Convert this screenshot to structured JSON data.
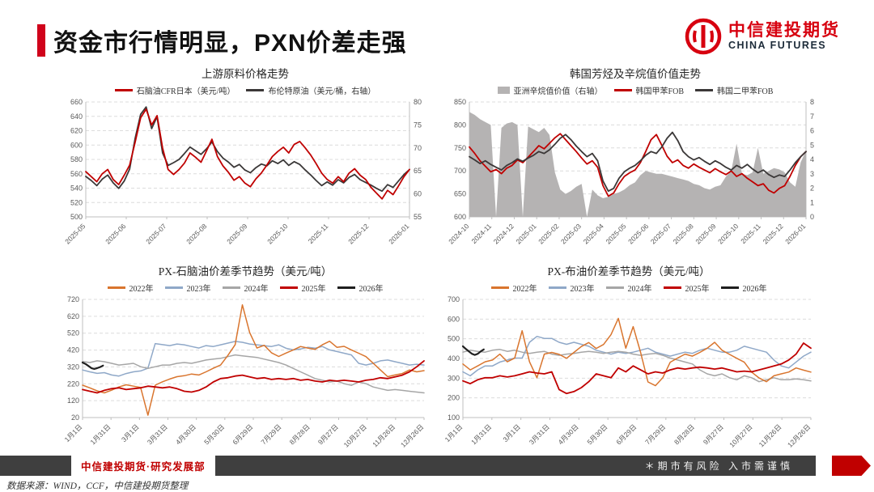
{
  "header": {
    "title": "资金市行情明显，PXN价差走强"
  },
  "logo": {
    "cn": "中信建投期货",
    "en": "CHINA FUTURES"
  },
  "footer": {
    "dept": "中信建投期货·研究发展部",
    "risk": "＊期市有风险  入市需谨慎",
    "source": "数据来源：WIND，CCF，中信建投期货整理"
  },
  "colors": {
    "red": "#c00000",
    "black": "#3b3838",
    "orange": "#d9752e",
    "blue": "#8fa8c8",
    "gray": "#a6a6a6",
    "area_gray": "#b5b3b3",
    "grid": "#dcdcdc",
    "axis": "#bfbfbf",
    "brand_red": "#d7000f"
  },
  "chart_data": [
    {
      "type": "line",
      "title": "上游原料价格走势",
      "legend": [
        {
          "label": "石脑油CFR日本（美元/吨）",
          "color": "#c00000",
          "swatch": "line"
        },
        {
          "label": "布伦特原油（美元/桶，右轴）",
          "color": "#3b3838",
          "swatch": "line"
        }
      ],
      "x_ticks": [
        "2025-05",
        "2025-06",
        "2025-07",
        "2025-08",
        "2025-09",
        "2025-10",
        "2025-11",
        "2025-12",
        "2026-01"
      ],
      "left_ticks": [
        500,
        520,
        540,
        560,
        580,
        600,
        620,
        640,
        660
      ],
      "right_ticks": [
        55,
        60,
        65,
        70,
        75,
        80
      ],
      "series": [
        {
          "name": "布伦特原油",
          "axis": "right",
          "type": "line",
          "color": "#3b3838",
          "width": 1.8,
          "values": [
            63.8,
            62.9,
            61.8,
            63.2,
            64.1,
            62.4,
            61.2,
            62.8,
            65.4,
            72.1,
            77.3,
            78.9,
            74.2,
            76.8,
            68.9,
            66.2,
            66.8,
            67.5,
            68.8,
            70.2,
            69.4,
            68.6,
            69.8,
            71.3,
            69.2,
            67.8,
            66.9,
            65.8,
            66.4,
            65.2,
            64.6,
            65.7,
            66.5,
            66.1,
            67.2,
            66.6,
            67.4,
            66.2,
            67.0,
            66.4,
            65.2,
            64.1,
            62.9,
            61.8,
            62.6,
            61.9,
            63.1,
            62.4,
            63.6,
            64.2,
            63.1,
            62.5,
            61.9,
            61.2,
            60.6,
            62.0,
            61.4,
            62.8,
            64.2,
            65.3
          ]
        },
        {
          "name": "石脑油CFR日本",
          "axis": "left",
          "type": "line",
          "color": "#c00000",
          "width": 1.8,
          "values": [
            563,
            556,
            549,
            560,
            566,
            552,
            545,
            558,
            572,
            604,
            638,
            650,
            628,
            641,
            596,
            566,
            559,
            566,
            575,
            589,
            583,
            576,
            592,
            608,
            584,
            571,
            562,
            551,
            556,
            547,
            542,
            553,
            561,
            572,
            584,
            591,
            597,
            589,
            601,
            605,
            596,
            586,
            574,
            561,
            552,
            547,
            556,
            549,
            561,
            567,
            558,
            552,
            541,
            533,
            525,
            537,
            531,
            543,
            556,
            566
          ]
        }
      ]
    },
    {
      "type": "line+area",
      "title": "韩国芳烃及辛烷值价值走势",
      "legend": [
        {
          "label": "亚洲辛烷值价值（右轴）",
          "color": "#b5b3b3",
          "swatch": "area"
        },
        {
          "label": "韩国甲苯FOB",
          "color": "#c00000",
          "swatch": "line"
        },
        {
          "label": "韩国二甲苯FOB",
          "color": "#3b3838",
          "swatch": "line"
        }
      ],
      "x_ticks": [
        "2024-10",
        "2024-11",
        "2024-12",
        "2025-01",
        "2025-02",
        "2025-03",
        "2025-04",
        "2025-05",
        "2025-06",
        "2025-07",
        "2025-08",
        "2025-09",
        "2025-10",
        "2025-11",
        "2025-12",
        "2026-01"
      ],
      "left_ticks": [
        600,
        650,
        700,
        750,
        800,
        850
      ],
      "right_ticks": [
        0,
        1,
        2,
        3,
        4,
        5,
        6,
        7,
        8
      ],
      "series": [
        {
          "name": "亚洲辛烷值价值",
          "axis": "right",
          "type": "area",
          "color": "#b5b3b3",
          "values": [
            7.3,
            7.1,
            6.8,
            6.6,
            6.4,
            0,
            6.2,
            6.5,
            6.6,
            6.4,
            0,
            6.3,
            6.1,
            5.9,
            6.2,
            5.7,
            3.1,
            1.9,
            1.6,
            1.8,
            2.1,
            2.3,
            0,
            1.9,
            1.5,
            1.3,
            1.4,
            1.6,
            1.7,
            1.9,
            2.2,
            2.4,
            2.9,
            3.2,
            3.1,
            3.0,
            3.0,
            2.9,
            2.8,
            2.7,
            2.6,
            2.5,
            2.3,
            2.2,
            2.0,
            1.9,
            2.1,
            2.2,
            2.8,
            3.2,
            5.1,
            3.0,
            2.9,
            3.1,
            4.8,
            3.0,
            3.2,
            3.4,
            3.3,
            3.1,
            2.4,
            2.1,
            3.8,
            4.6
          ]
        },
        {
          "name": "韩国甲苯FOB",
          "axis": "left",
          "type": "line",
          "color": "#c00000",
          "width": 1.8,
          "values": [
            752,
            738,
            722,
            710,
            698,
            703,
            694,
            706,
            712,
            724,
            718,
            730,
            742,
            755,
            748,
            760,
            772,
            781,
            768,
            755,
            742,
            728,
            715,
            722,
            708,
            668,
            645,
            652,
            672,
            688,
            696,
            702,
            718,
            742,
            768,
            779,
            756,
            732,
            718,
            724,
            712,
            706,
            715,
            708,
            702,
            696,
            705,
            698,
            692,
            700,
            688,
            694,
            684,
            676,
            668,
            672,
            658,
            652,
            662,
            668,
            688,
            712,
            731,
            742
          ]
        },
        {
          "name": "韩国二甲苯FOB",
          "axis": "left",
          "type": "line",
          "color": "#3b3838",
          "width": 1.8,
          "values": [
            731,
            724,
            716,
            722,
            714,
            708,
            702,
            712,
            718,
            726,
            721,
            728,
            734,
            742,
            738,
            746,
            758,
            771,
            779,
            768,
            754,
            742,
            731,
            738,
            722,
            678,
            656,
            662,
            684,
            698,
            706,
            712,
            722,
            734,
            742,
            738,
            752,
            771,
            784,
            766,
            742,
            731,
            724,
            729,
            721,
            714,
            722,
            716,
            708,
            702,
            712,
            706,
            714,
            704,
            696,
            702,
            692,
            686,
            691,
            688,
            702,
            718,
            731,
            742
          ]
        }
      ]
    },
    {
      "type": "line",
      "title": "PX-石脑油价差季节趋势（美元/吨）",
      "legend": [
        {
          "label": "2022年",
          "color": "#d9752e",
          "swatch": "line"
        },
        {
          "label": "2023年",
          "color": "#8fa8c8",
          "swatch": "line"
        },
        {
          "label": "2024年",
          "color": "#a6a6a6",
          "swatch": "line"
        },
        {
          "label": "2025年",
          "color": "#c00000",
          "swatch": "line"
        },
        {
          "label": "2026年",
          "color": "#1f1f1f",
          "swatch": "line"
        }
      ],
      "x_ticks": [
        "1月1日",
        "1月31日",
        "3月1日",
        "3月31日",
        "4月30日",
        "5月30日",
        "6月29日",
        "7月29日",
        "8月28日",
        "9月27日",
        "10月27日",
        "11月26日",
        "12月26日"
      ],
      "left_ticks": [
        20,
        120,
        220,
        320,
        420,
        520,
        620,
        720
      ],
      "right_ticks": null,
      "series": [
        {
          "name": "2023年",
          "axis": "left",
          "type": "line",
          "color": "#8fa8c8",
          "width": 1.5,
          "values": [
            302,
            291,
            282,
            286,
            272,
            266,
            281,
            291,
            296,
            312,
            458,
            452,
            446,
            456,
            451,
            441,
            432,
            446,
            441,
            451,
            461,
            471,
            466,
            456,
            451,
            446,
            441,
            451,
            431,
            421,
            426,
            436,
            431,
            441,
            421,
            411,
            401,
            391,
            341,
            331,
            341,
            356,
            361,
            351,
            341,
            331,
            336,
            331
          ]
        },
        {
          "name": "2024年",
          "axis": "left",
          "type": "line",
          "color": "#a6a6a6",
          "width": 1.5,
          "values": [
            352,
            346,
            356,
            351,
            341,
            331,
            336,
            341,
            321,
            311,
            321,
            331,
            331,
            341,
            346,
            341,
            351,
            361,
            366,
            371,
            381,
            391,
            386,
            381,
            376,
            366,
            356,
            346,
            331,
            311,
            291,
            271,
            251,
            241,
            231,
            236,
            221,
            211,
            231,
            221,
            201,
            191,
            181,
            186,
            181,
            176,
            171,
            166
          ]
        },
        {
          "name": "2022年",
          "axis": "left",
          "type": "line",
          "color": "#d9752e",
          "width": 1.5,
          "values": [
            212,
            196,
            178,
            166,
            182,
            201,
            214,
            206,
            198,
            34,
            212,
            232,
            248,
            262,
            268,
            278,
            272,
            291,
            312,
            331,
            388,
            452,
            688,
            524,
            432,
            448,
            404,
            382,
            402,
            421,
            441,
            432,
            424,
            451,
            472,
            436,
            442,
            421,
            401,
            381,
            342,
            302,
            262,
            272,
            281,
            302,
            291,
            298
          ]
        },
        {
          "name": "2025年",
          "axis": "left",
          "type": "line",
          "color": "#c00000",
          "width": 1.8,
          "values": [
            186,
            176,
            166,
            181,
            191,
            196,
            186,
            191,
            196,
            206,
            201,
            196,
            201,
            191,
            176,
            171,
            181,
            201,
            231,
            251,
            256,
            266,
            271,
            261,
            251,
            256,
            246,
            251,
            246,
            251,
            241,
            246,
            236,
            231,
            241,
            236,
            241,
            236,
            231,
            241,
            246,
            256,
            251,
            261,
            271,
            291,
            321,
            356
          ]
        },
        {
          "name": "2026年",
          "axis": "left",
          "type": "line",
          "color": "#1f1f1f",
          "width": 2.2,
          "x_range": [
            0,
            0.06
          ],
          "values": [
            346,
            338,
            326,
            313,
            308,
            313,
            319,
            328
          ]
        }
      ]
    },
    {
      "type": "line",
      "title": "PX-布油价差季节趋势（美元/吨）",
      "legend": [
        {
          "label": "2022年",
          "color": "#d9752e",
          "swatch": "line"
        },
        {
          "label": "2023年",
          "color": "#8fa8c8",
          "swatch": "line"
        },
        {
          "label": "2024年",
          "color": "#a6a6a6",
          "swatch": "line"
        },
        {
          "label": "2025年",
          "color": "#c00000",
          "swatch": "line"
        },
        {
          "label": "2026年",
          "color": "#1f1f1f",
          "swatch": "line"
        }
      ],
      "x_ticks": [
        "1月1日",
        "1月31日",
        "3月1日",
        "3月31日",
        "4月30日",
        "5月30日",
        "6月29日",
        "7月29日",
        "8月28日",
        "9月27日",
        "10月27日",
        "11月26日",
        "12月26日"
      ],
      "left_ticks": [
        100,
        200,
        300,
        400,
        500,
        600,
        700
      ],
      "right_ticks": null,
      "series": [
        {
          "name": "2023年",
          "axis": "left",
          "type": "line",
          "color": "#8fa8c8",
          "width": 1.5,
          "values": [
            332,
            312,
            342,
            362,
            362,
            382,
            392,
            402,
            402,
            482,
            512,
            502,
            502,
            482,
            472,
            482,
            472,
            462,
            442,
            432,
            422,
            432,
            426,
            432,
            442,
            452,
            432,
            422,
            412,
            422,
            432,
            426,
            442,
            452,
            442,
            432,
            432,
            442,
            462,
            452,
            442,
            432,
            392,
            362,
            352,
            382,
            412,
            432
          ]
        },
        {
          "name": "2024年",
          "axis": "left",
          "type": "line",
          "color": "#a6a6a6",
          "width": 1.5,
          "values": [
            432,
            442,
            436,
            432,
            442,
            446,
            436,
            442,
            432,
            426,
            432,
            436,
            422,
            416,
            422,
            426,
            432,
            436,
            432,
            426,
            432,
            436,
            432,
            422,
            416,
            422,
            426,
            416,
            402,
            392,
            382,
            372,
            342,
            322,
            312,
            322,
            302,
            292,
            312,
            302,
            282,
            292,
            302,
            292,
            292,
            296,
            292,
            286
          ]
        },
        {
          "name": "2022年",
          "axis": "left",
          "type": "line",
          "color": "#d9752e",
          "width": 1.5,
          "values": [
            372,
            342,
            362,
            383,
            392,
            422,
            383,
            402,
            541,
            383,
            302,
            422,
            431,
            421,
            401,
            431,
            461,
            481,
            451,
            471,
            521,
            604,
            452,
            562,
            431,
            281,
            262,
            302,
            381,
            402,
            422,
            412,
            431,
            452,
            482,
            442,
            421,
            401,
            381,
            331,
            301,
            282,
            312,
            322,
            331,
            352,
            341,
            331
          ]
        },
        {
          "name": "2025年",
          "axis": "left",
          "type": "line",
          "color": "#c00000",
          "width": 1.8,
          "values": [
            286,
            272,
            292,
            302,
            302,
            312,
            306,
            312,
            322,
            332,
            326,
            322,
            332,
            242,
            222,
            232,
            252,
            282,
            322,
            312,
            302,
            352,
            332,
            362,
            342,
            322,
            332,
            326,
            342,
            352,
            346,
            352,
            356,
            352,
            346,
            352,
            342,
            332,
            336,
            332,
            342,
            352,
            362,
            372,
            392,
            422,
            478,
            452
          ]
        },
        {
          "name": "2026年",
          "axis": "left",
          "type": "line",
          "color": "#1f1f1f",
          "width": 2.2,
          "x_range": [
            0,
            0.06
          ],
          "values": [
            462,
            448,
            436,
            424,
            418,
            424,
            436,
            446
          ]
        }
      ]
    }
  ]
}
